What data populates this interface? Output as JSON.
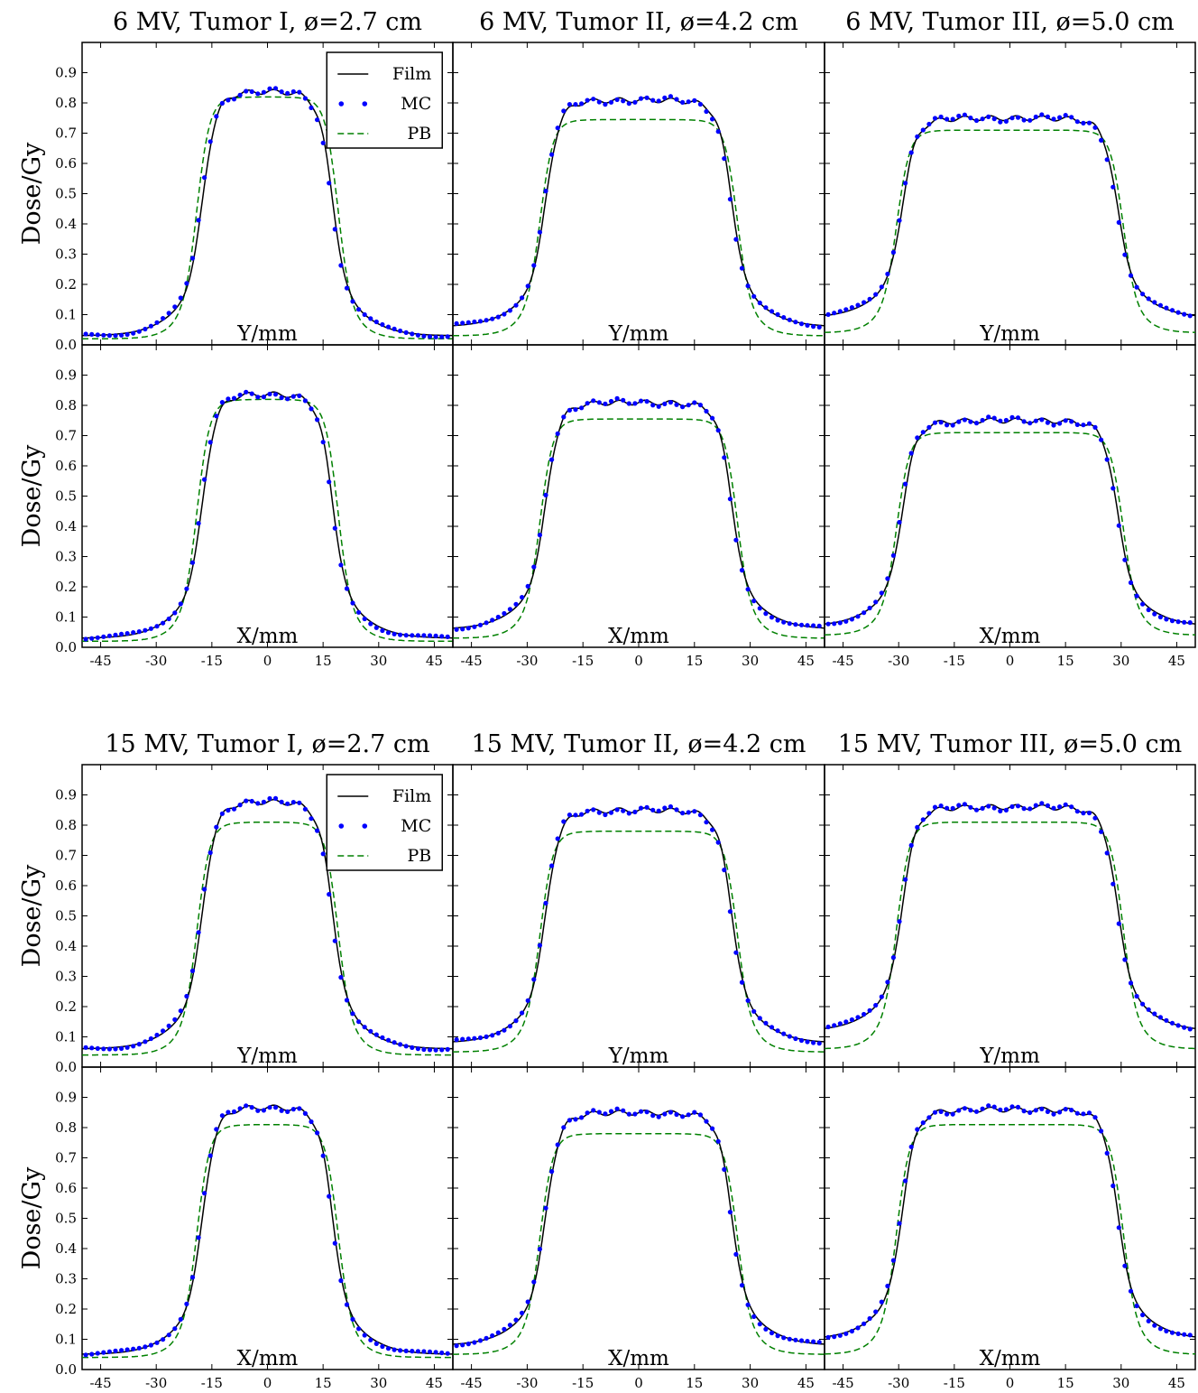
{
  "figure": {
    "colors": {
      "film": "#000000",
      "mc": "#0000ff",
      "pb": "#008000"
    },
    "legend": {
      "film": "Film",
      "mc": "MC",
      "pb": "PB"
    }
  },
  "chart_data": [
    {
      "type": "line",
      "title": "6 MV, Tumor I, ø=2.7 cm",
      "xlabel": "Y/mm",
      "ylabel": "Dose/Gy",
      "xlim": [
        -50,
        50
      ],
      "ylim": [
        0,
        1.0
      ],
      "legend": "top-right",
      "profile": {
        "d": 2.7,
        "peak": 0.84,
        "pbPeak": 0.82,
        "tail": 0.03,
        "pbTail": 0.02
      }
    },
    {
      "type": "line",
      "title": "6 MV, Tumor II, ø=4.2 cm",
      "xlabel": "Y/mm",
      "ylabel": "",
      "xlim": [
        -50,
        50
      ],
      "ylim": [
        0,
        1.0
      ],
      "profile": {
        "d": 4.2,
        "peak": 0.81,
        "pbPeak": 0.745,
        "tail": 0.06,
        "pbTail": 0.03
      }
    },
    {
      "type": "line",
      "title": "6 MV, Tumor III, ø=5.0 cm",
      "xlabel": "Y/mm",
      "ylabel": "",
      "xlim": [
        -50,
        50
      ],
      "ylim": [
        0,
        1.0
      ],
      "profile": {
        "d": 5.0,
        "peak": 0.75,
        "pbPeak": 0.71,
        "tail": 0.09,
        "pbTail": 0.04
      }
    },
    {
      "type": "line",
      "title": "",
      "xlabel": "X/mm",
      "ylabel": "Dose/Gy",
      "xlim": [
        -50,
        50
      ],
      "ylim": [
        0,
        1.0
      ],
      "xticks": [
        -45,
        -30,
        -15,
        0,
        15,
        30,
        45
      ],
      "profile": {
        "d": 2.7,
        "peak": 0.84,
        "pbPeak": 0.82,
        "tail": 0.03,
        "pbTail": 0.02
      }
    },
    {
      "type": "line",
      "title": "",
      "xlabel": "X/mm",
      "ylabel": "",
      "xlim": [
        -50,
        50
      ],
      "ylim": [
        0,
        1.0
      ],
      "xticks": [
        -45,
        -30,
        -15,
        0,
        15,
        30,
        45
      ],
      "profile": {
        "d": 4.2,
        "peak": 0.81,
        "pbPeak": 0.755,
        "tail": 0.06,
        "pbTail": 0.03
      }
    },
    {
      "type": "line",
      "title": "",
      "xlabel": "X/mm",
      "ylabel": "",
      "xlim": [
        -50,
        50
      ],
      "ylim": [
        0,
        1.0
      ],
      "xticks": [
        -45,
        -30,
        -15,
        0,
        15,
        30,
        45
      ],
      "profile": {
        "d": 5.0,
        "peak": 0.75,
        "pbPeak": 0.71,
        "tail": 0.07,
        "pbTail": 0.04
      }
    },
    {
      "type": "line",
      "title": "15 MV, Tumor I, ø=2.7 cm",
      "xlabel": "Y/mm",
      "ylabel": "Dose/Gy",
      "xlim": [
        -50,
        50
      ],
      "ylim": [
        0,
        1.0
      ],
      "legend": "top-right",
      "profile": {
        "d": 2.7,
        "peak": 0.88,
        "pbPeak": 0.81,
        "tail": 0.06,
        "pbTail": 0.04
      }
    },
    {
      "type": "line",
      "title": "15 MV, Tumor II, ø=4.2 cm",
      "xlabel": "Y/mm",
      "ylabel": "",
      "xlim": [
        -50,
        50
      ],
      "ylim": [
        0,
        1.0
      ],
      "profile": {
        "d": 4.2,
        "peak": 0.85,
        "pbPeak": 0.78,
        "tail": 0.08,
        "pbTail": 0.05
      }
    },
    {
      "type": "line",
      "title": "15 MV, Tumor III, ø=5.0 cm",
      "xlabel": "Y/mm",
      "ylabel": "",
      "xlim": [
        -50,
        50
      ],
      "ylim": [
        0,
        1.0
      ],
      "profile": {
        "d": 5.0,
        "peak": 0.86,
        "pbPeak": 0.81,
        "tail": 0.12,
        "pbTail": 0.06
      }
    },
    {
      "type": "line",
      "title": "",
      "xlabel": "X/mm",
      "ylabel": "Dose/Gy",
      "xlim": [
        -50,
        50
      ],
      "ylim": [
        0,
        1.0
      ],
      "xticks": [
        -45,
        -30,
        -15,
        0,
        15,
        30,
        45
      ],
      "profile": {
        "d": 2.7,
        "peak": 0.87,
        "pbPeak": 0.81,
        "tail": 0.05,
        "pbTail": 0.04
      }
    },
    {
      "type": "line",
      "title": "",
      "xlabel": "X/mm",
      "ylabel": "",
      "xlim": [
        -50,
        50
      ],
      "ylim": [
        0,
        1.0
      ],
      "xticks": [
        -45,
        -30,
        -15,
        0,
        15,
        30,
        45
      ],
      "profile": {
        "d": 4.2,
        "peak": 0.85,
        "pbPeak": 0.78,
        "tail": 0.08,
        "pbTail": 0.05
      }
    },
    {
      "type": "line",
      "title": "",
      "xlabel": "X/mm",
      "ylabel": "",
      "xlim": [
        -50,
        50
      ],
      "ylim": [
        0,
        1.0
      ],
      "xticks": [
        -45,
        -30,
        -15,
        0,
        15,
        30,
        45
      ],
      "profile": {
        "d": 5.0,
        "peak": 0.86,
        "pbPeak": 0.81,
        "tail": 0.1,
        "pbTail": 0.05
      }
    }
  ],
  "yticks": [
    "0.0",
    "0.1",
    "0.2",
    "0.3",
    "0.4",
    "0.5",
    "0.6",
    "0.7",
    "0.8",
    "0.9"
  ]
}
